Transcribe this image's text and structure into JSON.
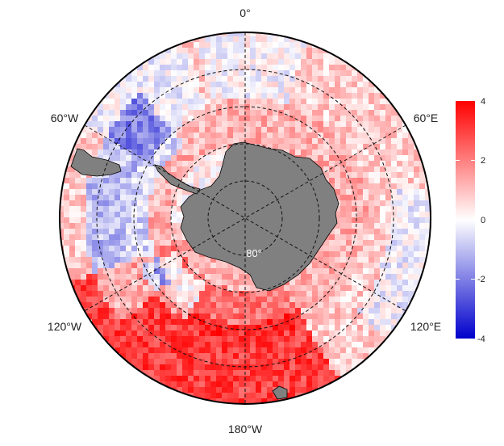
{
  "map": {
    "projection": "south-polar-stereographic",
    "longitude_labels": {
      "top": "0°",
      "upper_left": "60°W",
      "upper_right": "60°E",
      "lower_left": "120°W",
      "lower_right": "120°E",
      "bottom": "180°W"
    },
    "latitude_label": "80°",
    "graticule_style": "dashed",
    "land_color": "#808080",
    "outline_color": "#000000"
  },
  "colorbar": {
    "ticks": [
      "4",
      "2",
      "0",
      "-2",
      "-4"
    ],
    "range": [
      -4,
      4
    ],
    "colors": {
      "high": "#ff0000",
      "mid": "#ffffff",
      "low": "#0000cc"
    }
  }
}
